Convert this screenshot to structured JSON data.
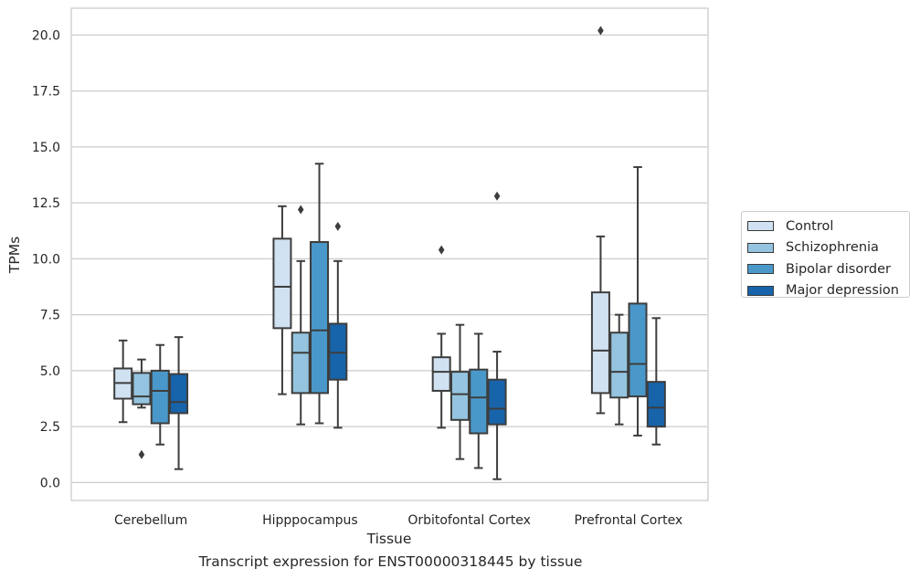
{
  "chart_data": {
    "type": "box",
    "title": "",
    "caption": "Transcript expression for ENST00000318445 by tissue",
    "xlabel": "Tissue",
    "ylabel": "TPMs",
    "ylim": [
      -0.8,
      21.2
    ],
    "yticks": [
      "0.0",
      "2.5",
      "5.0",
      "7.5",
      "10.0",
      "12.5",
      "15.0",
      "17.5",
      "20.0"
    ],
    "categories": [
      "Cerebellum",
      "Hipppocampus",
      "Orbitofontal Cortex",
      "Prefrontal Cortex"
    ],
    "grid": true,
    "legend_position": "right",
    "series": [
      {
        "name": "Control",
        "color": "#d0e1f2",
        "boxes": [
          {
            "whislo": 2.7,
            "q1": 3.75,
            "med": 4.45,
            "q3": 5.1,
            "whishi": 6.35,
            "fliers": []
          },
          {
            "whislo": 3.95,
            "q1": 6.9,
            "med": 8.75,
            "q3": 10.9,
            "whishi": 12.35,
            "fliers": []
          },
          {
            "whislo": 2.45,
            "q1": 4.1,
            "med": 4.95,
            "q3": 5.6,
            "whishi": 6.65,
            "fliers": [
              10.4
            ]
          },
          {
            "whislo": 3.1,
            "q1": 4.0,
            "med": 5.9,
            "q3": 8.5,
            "whishi": 11.0,
            "fliers": [
              20.2
            ]
          }
        ]
      },
      {
        "name": "Schizophrenia",
        "color": "#94c4df",
        "boxes": [
          {
            "whislo": 3.35,
            "q1": 3.5,
            "med": 3.85,
            "q3": 4.9,
            "whishi": 5.5,
            "fliers": [
              1.25
            ]
          },
          {
            "whislo": 2.6,
            "q1": 4.0,
            "med": 5.8,
            "q3": 6.7,
            "whishi": 9.9,
            "fliers": [
              12.2
            ]
          },
          {
            "whislo": 1.05,
            "q1": 2.8,
            "med": 3.95,
            "q3": 4.95,
            "whishi": 7.05,
            "fliers": []
          },
          {
            "whislo": 2.6,
            "q1": 3.8,
            "med": 4.95,
            "q3": 6.7,
            "whishi": 7.5,
            "fliers": []
          }
        ]
      },
      {
        "name": "Bipolar disorder",
        "color": "#4a98c9",
        "boxes": [
          {
            "whislo": 1.7,
            "q1": 2.65,
            "med": 4.1,
            "q3": 5.0,
            "whishi": 6.15,
            "fliers": []
          },
          {
            "whislo": 2.65,
            "q1": 4.0,
            "med": 6.8,
            "q3": 10.75,
            "whishi": 14.25,
            "fliers": []
          },
          {
            "whislo": 0.65,
            "q1": 2.2,
            "med": 3.8,
            "q3": 5.05,
            "whishi": 6.65,
            "fliers": []
          },
          {
            "whislo": 2.1,
            "q1": 3.85,
            "med": 5.3,
            "q3": 8.0,
            "whishi": 14.1,
            "fliers": []
          }
        ]
      },
      {
        "name": "Major depression",
        "color": "#1764ab",
        "boxes": [
          {
            "whislo": 0.6,
            "q1": 3.1,
            "med": 3.6,
            "q3": 4.85,
            "whishi": 6.5,
            "fliers": []
          },
          {
            "whislo": 2.45,
            "q1": 4.6,
            "med": 5.8,
            "q3": 7.1,
            "whishi": 9.9,
            "fliers": [
              11.45
            ]
          },
          {
            "whislo": 0.15,
            "q1": 2.6,
            "med": 3.3,
            "q3": 4.6,
            "whishi": 5.85,
            "fliers": [
              12.8
            ]
          },
          {
            "whislo": 1.7,
            "q1": 2.5,
            "med": 3.35,
            "q3": 4.5,
            "whishi": 7.35,
            "fliers": []
          }
        ]
      }
    ]
  }
}
